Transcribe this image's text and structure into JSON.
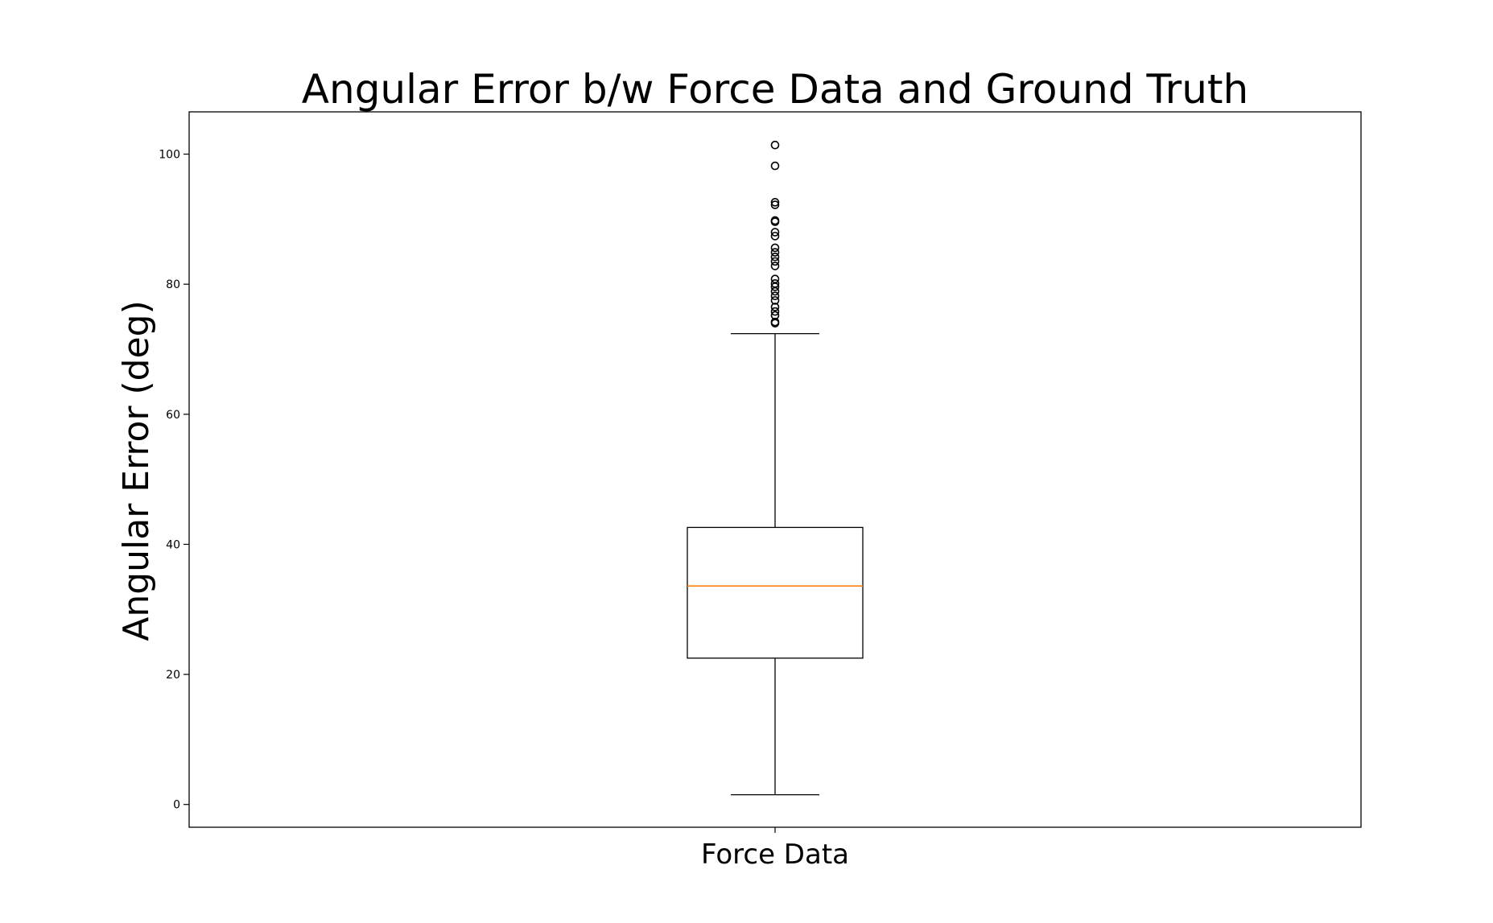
{
  "chart_data": {
    "type": "box",
    "title": "Angular Error b/w Force Data and Ground Truth",
    "xlabel": "",
    "ylabel": "Angular Error (deg)",
    "categories": [
      "Force Data"
    ],
    "ylim": [
      -3.5,
      106.5
    ],
    "yticks": [
      0,
      20,
      40,
      60,
      80,
      100
    ],
    "grid": false,
    "colors": {
      "box": "#000000",
      "median": "#ff7f0e",
      "whisker": "#000000",
      "flier": "#000000",
      "axes": "#000000"
    },
    "boxes": [
      {
        "category": "Force Data",
        "whisker_low": 1.5,
        "q1": 22.5,
        "median": 33.6,
        "q3": 42.6,
        "whisker_high": 72.4,
        "fliers": [
          74.0,
          74.2,
          75.2,
          75.8,
          76.5,
          77.5,
          78.2,
          78.9,
          79.6,
          80.1,
          80.8,
          82.8,
          83.5,
          84.2,
          84.9,
          85.6,
          87.4,
          88.0,
          89.6,
          89.8,
          92.2,
          92.6,
          98.2,
          101.4
        ]
      }
    ]
  }
}
